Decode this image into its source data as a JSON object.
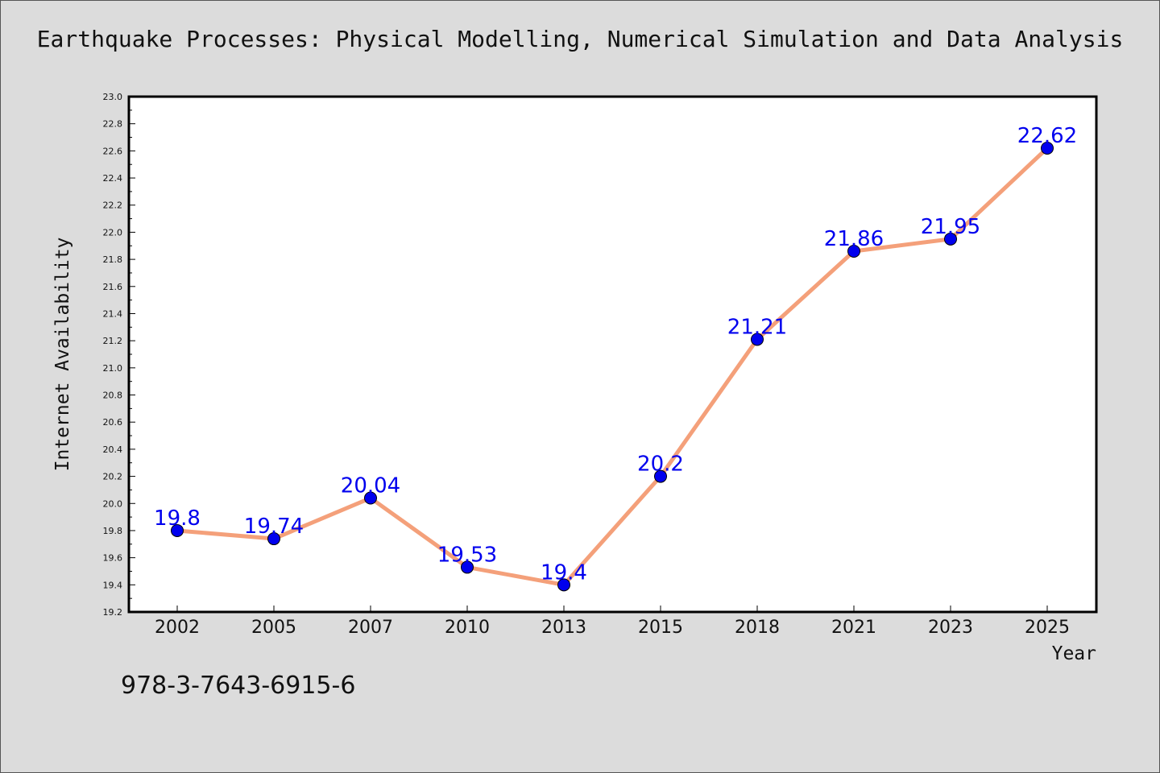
{
  "chart_data": {
    "type": "line",
    "title": "Earthquake Processes: Physical Modelling, Numerical Simulation and Data Analysis",
    "xlabel": "Year",
    "ylabel": "Internet Availability",
    "categories": [
      "2002",
      "2005",
      "2007",
      "2010",
      "2013",
      "2015",
      "2018",
      "2021",
      "2023",
      "2025"
    ],
    "series": [
      {
        "values": [
          19.8,
          19.74,
          20.04,
          19.53,
          19.4,
          20.2,
          21.21,
          21.86,
          21.95,
          22.62
        ],
        "data_labels": [
          "19.8",
          "19.74",
          "20.04",
          "19.53",
          "19.4",
          "20.2",
          "21.21",
          "21.86",
          "21.95",
          "22.62"
        ],
        "line_color": "#f4a07a",
        "marker_color": "#0000ee"
      }
    ],
    "ylim": [
      19.2,
      23.0
    ],
    "yticks": [
      "19.2",
      "19.4",
      "19.6",
      "19.8",
      "20.0",
      "20.2",
      "20.4",
      "20.6",
      "20.8",
      "21.0",
      "21.2",
      "21.4",
      "21.6",
      "21.8",
      "22.0",
      "22.2",
      "22.4",
      "22.6",
      "22.8",
      "23.0"
    ],
    "grid": false,
    "legend": "none"
  },
  "footer": {
    "isbn": "978-3-7643-6915-6"
  },
  "colors": {
    "background": "#dcdcdc",
    "plot_background": "#ffffff",
    "line": "#f4a07a",
    "marker": "#0000ee",
    "data_label": "#0000ee"
  }
}
